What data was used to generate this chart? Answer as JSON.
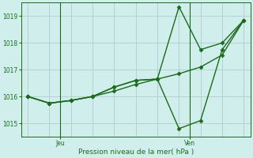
{
  "xlabel": "Pression niveau de la mer( hPa )",
  "background_color": "#d0eeeb",
  "line_color": "#1a6b1a",
  "grid_color": "#b0cccc",
  "ylim": [
    1014.5,
    1019.5
  ],
  "yticks": [
    1015,
    1016,
    1017,
    1018,
    1019
  ],
  "series1_x": [
    0,
    1,
    2,
    3,
    4,
    5,
    6,
    7,
    8,
    9,
    10
  ],
  "series1_y": [
    1016.0,
    1015.75,
    1015.85,
    1016.0,
    1016.35,
    1016.6,
    1016.65,
    1014.8,
    1015.1,
    1017.75,
    1018.85
  ],
  "series2_x": [
    0,
    1,
    2,
    3,
    4,
    5,
    6,
    7,
    8,
    9,
    10
  ],
  "series2_y": [
    1016.0,
    1015.75,
    1015.85,
    1016.0,
    1016.2,
    1016.45,
    1016.65,
    1016.85,
    1017.1,
    1017.55,
    1018.85
  ],
  "series3_x": [
    0,
    1,
    2,
    3,
    4,
    5,
    6,
    7,
    8,
    9,
    10
  ],
  "series3_y": [
    1016.0,
    1015.75,
    1015.85,
    1016.0,
    1016.35,
    1016.6,
    1016.65,
    1019.35,
    1017.75,
    1018.0,
    1018.85
  ],
  "jeu_x": 1.5,
  "ven_x": 7.5,
  "xlim": [
    -0.3,
    10.3
  ],
  "marker_size": 2.5,
  "linewidth": 1.0
}
